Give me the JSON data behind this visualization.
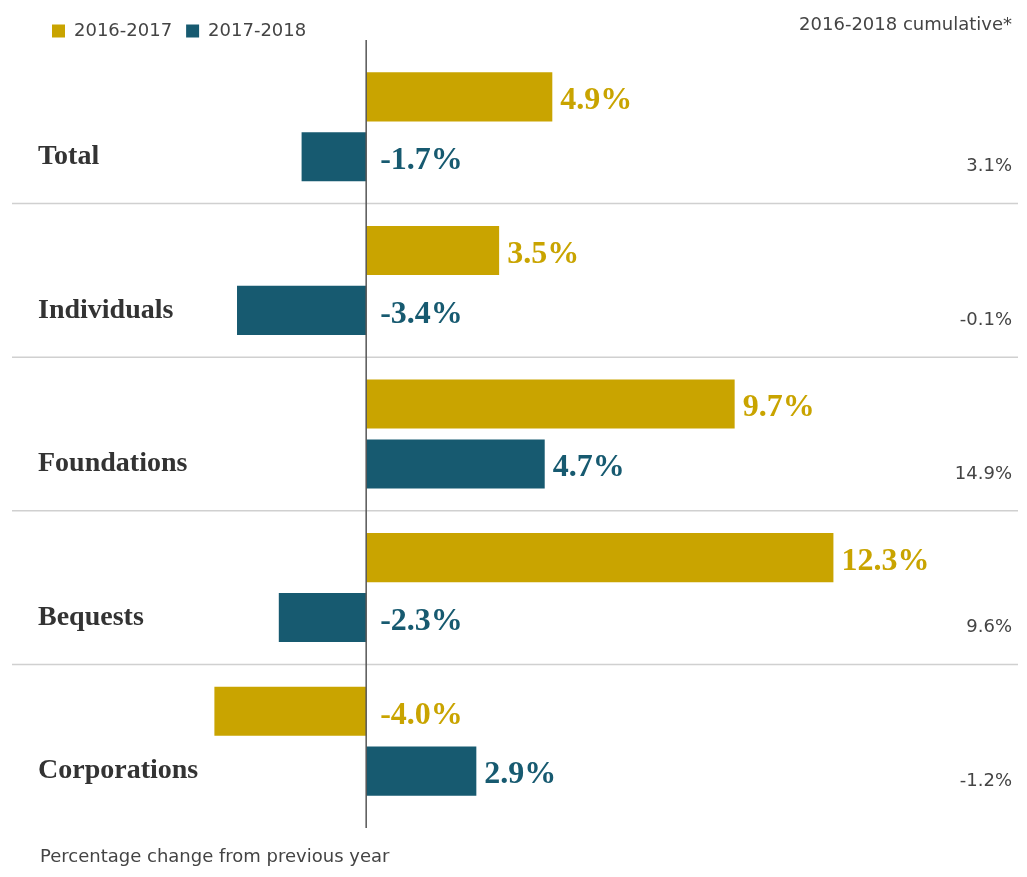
{
  "chart_data": {
    "type": "bar",
    "orientation": "horizontal",
    "categories": [
      "Total",
      "Individuals",
      "Foundations",
      "Bequests",
      "Corporations"
    ],
    "series": [
      {
        "name": "2016-2017",
        "color": "#c9a400",
        "values": [
          4.9,
          3.5,
          9.7,
          12.3,
          -4.0
        ],
        "value_labels": [
          "4.9%",
          "3.5%",
          "9.7%",
          "12.3%",
          "-4.0%"
        ]
      },
      {
        "name": "2017-2018",
        "color": "#175a70",
        "values": [
          -1.7,
          -3.4,
          4.7,
          -2.3,
          2.9
        ],
        "value_labels": [
          "-1.7%",
          "-3.4%",
          "4.7%",
          "-2.3%",
          "2.9%"
        ]
      }
    ],
    "tick_labels": "y",
    "grid": "y",
    "legend": "top left",
    "xlabel": "Percentage change from previous year",
    "annotations": [
      "2016-2018 cumulative*",
      "3.1%",
      "-0.1%",
      "14.9%",
      "9.6%",
      "-1.2%"
    ]
  }
}
